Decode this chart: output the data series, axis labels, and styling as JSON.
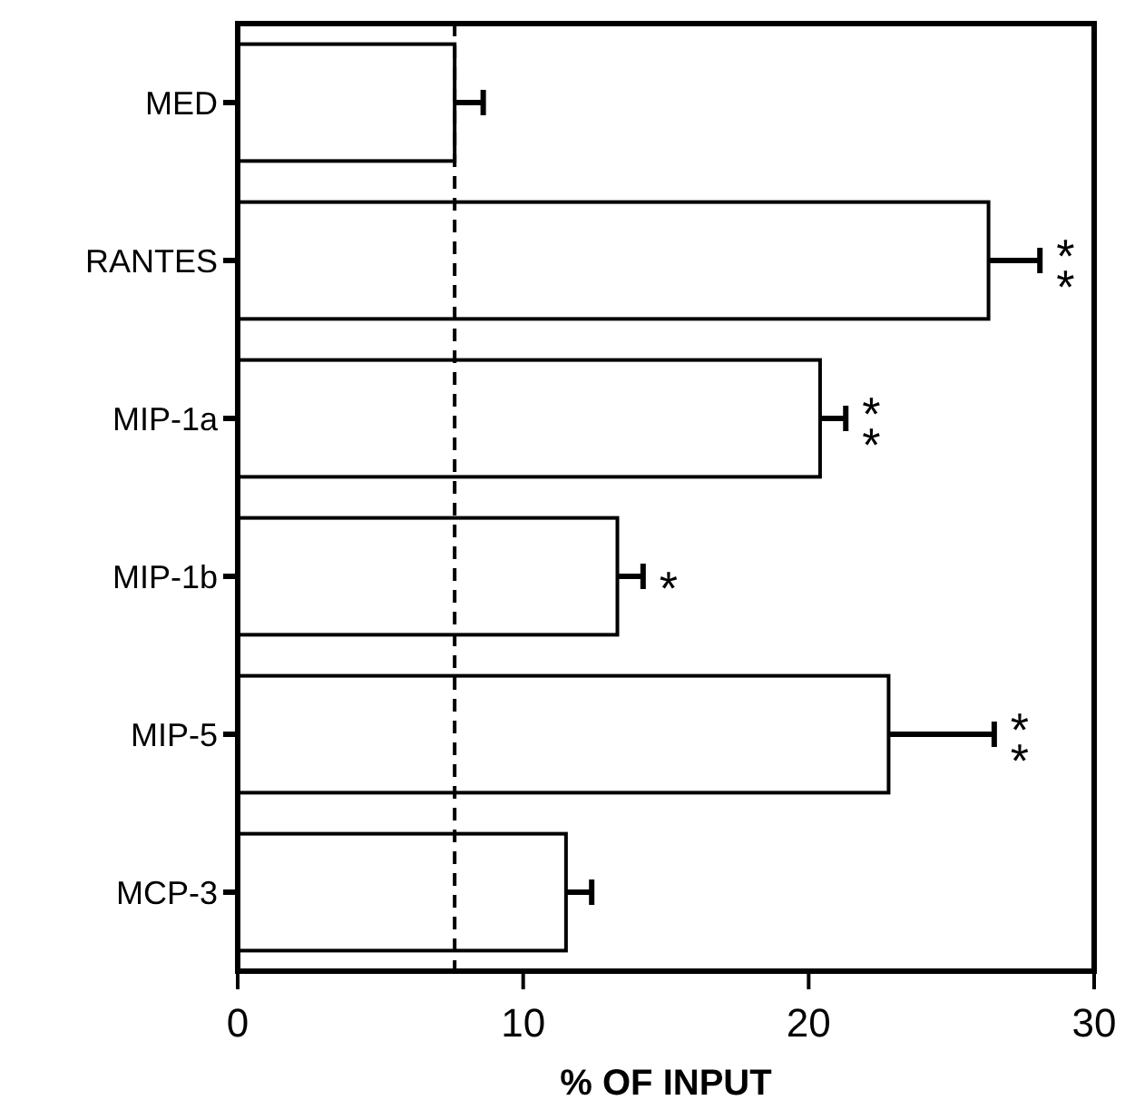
{
  "chart_data": {
    "type": "bar",
    "orientation": "horizontal",
    "xlabel": "% OF INPUT",
    "categories": [
      "MED",
      "RANTES",
      "MIP-1a",
      "MIP-1b",
      "MIP-5",
      "MCP-3"
    ],
    "values": [
      7.6,
      26.3,
      20.4,
      13.3,
      22.8,
      11.5
    ],
    "errors": [
      [
        7.6,
        8.6
      ],
      [
        26.3,
        28.1
      ],
      [
        20.4,
        21.3
      ],
      [
        13.3,
        14.2
      ],
      [
        22.8,
        26.5
      ],
      [
        11.5,
        12.4
      ]
    ],
    "color": "#ffffff",
    "xlim": [
      0,
      30
    ],
    "xticks": [
      0,
      10,
      20,
      30
    ],
    "ref_lines": [
      {
        "axis": "x",
        "value": 7.6,
        "line_style": "dashed",
        "color": "#000000"
      }
    ],
    "annotations": [
      {
        "text": "**",
        "x": 28.1,
        "y": "RANTES"
      },
      {
        "text": "**",
        "x": 21.3,
        "y": "MIP-1a"
      },
      {
        "text": "*",
        "x": 14.2,
        "y": "MIP-1b"
      },
      {
        "text": "**",
        "x": 26.5,
        "y": "MIP-5"
      }
    ],
    "grid": false
  }
}
